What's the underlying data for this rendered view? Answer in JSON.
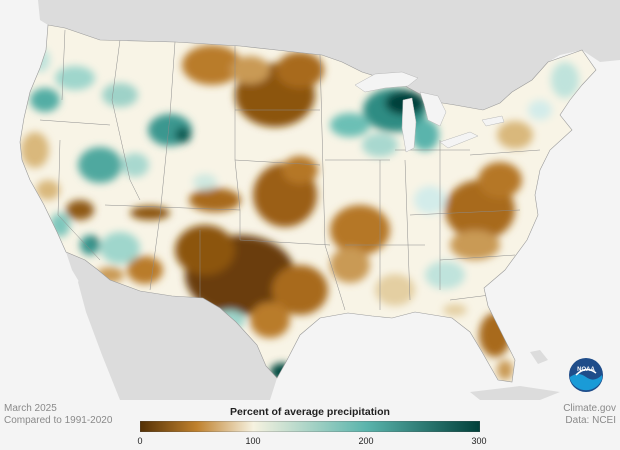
{
  "info": {
    "date": "March 2025",
    "baseline": "Compared to 1991-2020",
    "source": "Climate.gov",
    "data_credit": "Data: NCEI"
  },
  "legend": {
    "title": "Percent of average precipitation",
    "min": 0,
    "max": 300,
    "ticks": [
      "0",
      "100",
      "200",
      "300"
    ],
    "stops": [
      {
        "value": 0,
        "color": "#543005"
      },
      {
        "value": 50,
        "color": "#bf812d"
      },
      {
        "value": 100,
        "color": "#f6f2e0"
      },
      {
        "value": 200,
        "color": "#5ab4ac"
      },
      {
        "value": 300,
        "color": "#01403a"
      }
    ]
  },
  "logo": {
    "text": "NOAA"
  },
  "map": {
    "land_color": "#f9f6ea",
    "surround_color": "#dcdcdc",
    "ocean_color": "#f4f4f4"
  }
}
